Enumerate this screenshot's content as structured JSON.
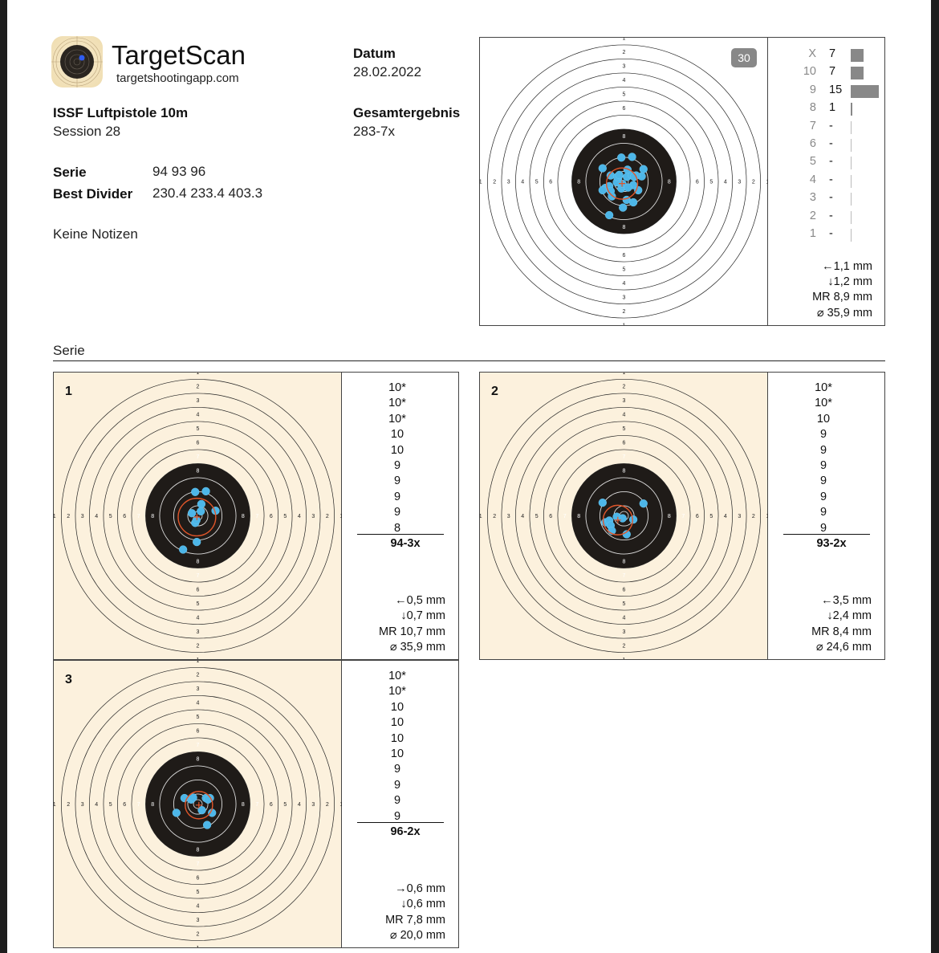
{
  "header": {
    "app_name": "TargetScan",
    "app_url": "targetshootingapp.com",
    "discipline": "ISSF Luftpistole 10m",
    "session": "Session 28",
    "date_label": "Datum",
    "date": "28.02.2022",
    "total_label": "Gesamtergebnis",
    "total": "283-7x",
    "serie_label": "Serie",
    "serie_values": "94 93 96",
    "divider_label": "Best Divider",
    "divider_values": "230.4 233.4 403.3",
    "notes": "Keine Notizen"
  },
  "colors": {
    "shot": "#4db6e8",
    "mean_circle": "#e0562a",
    "cream": "#fcf1dd",
    "black": "#1f1b18"
  },
  "overview": {
    "shot_count": "30",
    "histogram": [
      {
        "ring": "X",
        "count": "7",
        "n": 7
      },
      {
        "ring": "10",
        "count": "7",
        "n": 7
      },
      {
        "ring": "9",
        "count": "15",
        "n": 15
      },
      {
        "ring": "8",
        "count": "1",
        "n": 1
      },
      {
        "ring": "7",
        "count": "-",
        "n": 0
      },
      {
        "ring": "6",
        "count": "-",
        "n": 0
      },
      {
        "ring": "5",
        "count": "-",
        "n": 0
      },
      {
        "ring": "4",
        "count": "-",
        "n": 0
      },
      {
        "ring": "3",
        "count": "-",
        "n": 0
      },
      {
        "ring": "2",
        "count": "-",
        "n": 0
      },
      {
        "ring": "1",
        "count": "-",
        "n": 0
      }
    ],
    "stats": [
      "←1,1 mm",
      "↓1,2 mm",
      "MR 8,9 mm",
      "⌀ 35,9 mm"
    ],
    "mr_mm": 8.9,
    "offset_mm": [
      -1.1,
      -1.2
    ]
  },
  "series_title": "Serie",
  "series": [
    {
      "number": "1",
      "scores": [
        "10*",
        "10*",
        "10*",
        "10",
        "10",
        "9",
        "9",
        "9",
        "9",
        "8"
      ],
      "total": "94-3x",
      "stats": [
        "←0,5 mm",
        "↓0,7 mm",
        "MR 10,7 mm",
        "⌀ 35,9 mm"
      ],
      "mr_mm": 10.7,
      "offset_mm": [
        -0.5,
        -0.7
      ],
      "shots_mm": [
        [
          -1.5,
          13.6
        ],
        [
          4.6,
          14.0
        ],
        [
          2.0,
          6.7
        ],
        [
          1.7,
          2.6
        ],
        [
          -3.4,
          1.5
        ],
        [
          10.1,
          2.9
        ],
        [
          -1.5,
          -4.0
        ],
        [
          -0.8,
          -2.5
        ],
        [
          -0.6,
          -14.9
        ],
        [
          -8.4,
          -19.2
        ]
      ]
    },
    {
      "number": "2",
      "scores": [
        "10*",
        "10*",
        "10",
        "9",
        "9",
        "9",
        "9",
        "9",
        "9",
        "9"
      ],
      "total": "93-2x",
      "stats": [
        "←3,5 mm",
        "↓2,4 mm",
        "MR 8,4 mm",
        "⌀ 24,6 mm"
      ],
      "mr_mm": 8.4,
      "offset_mm": [
        -3.5,
        -2.4
      ],
      "shots_mm": [
        [
          -12.2,
          7.5
        ],
        [
          11.1,
          7.0
        ],
        [
          -4.1,
          -0.5
        ],
        [
          -0.8,
          -1.4
        ],
        [
          5.3,
          -2.1
        ],
        [
          -10.7,
          -3.7
        ],
        [
          -8.4,
          -2.7
        ],
        [
          -7.6,
          -5.5
        ],
        [
          -6.9,
          -8.5
        ],
        [
          1.5,
          -10.5
        ]
      ]
    },
    {
      "number": "3",
      "scores": [
        "10*",
        "10*",
        "10",
        "10",
        "10",
        "10",
        "9",
        "9",
        "9",
        "9"
      ],
      "total": "96-2x",
      "stats": [
        "→0,6 mm",
        "↓0,6 mm",
        "MR 7,8 mm",
        "⌀ 20,0 mm"
      ],
      "mr_mm": 7.8,
      "offset_mm": [
        0.6,
        -0.6
      ],
      "shots_mm": [
        [
          -7.6,
          3.4
        ],
        [
          -3.8,
          2.6
        ],
        [
          -2.7,
          3.7
        ],
        [
          4.6,
          3.4
        ],
        [
          6.9,
          3.4
        ],
        [
          5.8,
          2.6
        ],
        [
          2.3,
          -3.5
        ],
        [
          -12.2,
          -5.0
        ],
        [
          8.1,
          -5.0
        ],
        [
          5.3,
          -11.9
        ]
      ]
    }
  ]
}
